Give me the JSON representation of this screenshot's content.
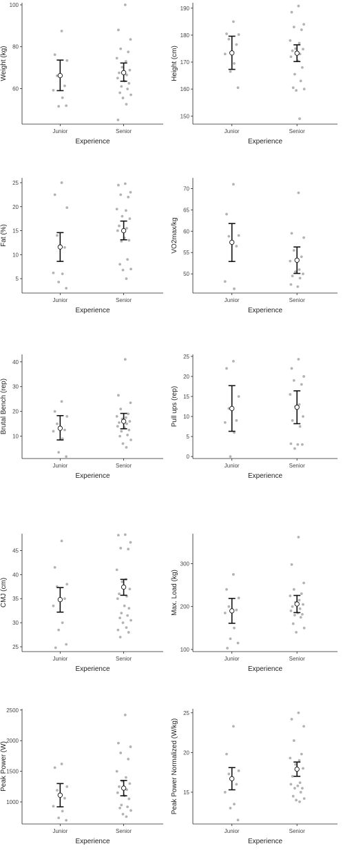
{
  "chart_data": [
    {
      "type": "scatter",
      "xlabel": "Experience",
      "ylabel": "Weight (kg)",
      "categories": [
        "Junior",
        "Senior"
      ],
      "ylim": [
        43,
        101
      ],
      "yticks": [
        60,
        80,
        100
      ],
      "groups": [
        {
          "name": "Junior",
          "mean": 66.2,
          "ci_low": 59.0,
          "ci_high": 73.6,
          "values": [
            87.5,
            76.2,
            73.4,
            66.1,
            61.3,
            59.2,
            55.6,
            51.5,
            51.8
          ]
        },
        {
          "name": "Senior",
          "mean": 67.6,
          "ci_low": 63.5,
          "ci_high": 72.2,
          "values": [
            100.0,
            88.0,
            83.5,
            79.0,
            77.5,
            74.5,
            73.0,
            70.2,
            68.8,
            67.5,
            66.5,
            65.0,
            63.6,
            62.5,
            61.0,
            59.8,
            58.0,
            57.0,
            55.5,
            52.5,
            45.0
          ]
        }
      ]
    },
    {
      "type": "scatter",
      "xlabel": "Experience",
      "ylabel": "Height (cm)",
      "categories": [
        "Junior",
        "Senior"
      ],
      "ylim": [
        147,
        192
      ],
      "yticks": [
        150,
        160,
        170,
        180,
        190
      ],
      "groups": [
        {
          "name": "Junior",
          "mean": 173.4,
          "ci_low": 167.3,
          "ci_high": 179.6,
          "values": [
            185.0,
            180.5,
            180.2,
            178.5,
            176.5,
            173.0,
            169.5,
            166.5,
            160.5
          ]
        },
        {
          "name": "Senior",
          "mean": 173.3,
          "ci_low": 170.2,
          "ci_high": 176.4,
          "values": [
            190.8,
            188.5,
            184.0,
            183.0,
            182.0,
            178.0,
            177.0,
            175.0,
            174.8,
            174.2,
            173.0,
            172.0,
            170.5,
            168.0,
            165.5,
            163.0,
            160.5,
            160.0,
            159.5,
            149.0
          ]
        }
      ]
    },
    {
      "type": "scatter",
      "xlabel": "Experience",
      "ylabel": "Fat (%)",
      "categories": [
        "Junior",
        "Senior"
      ],
      "ylim": [
        2,
        26
      ],
      "yticks": [
        5,
        10,
        15,
        20,
        25
      ],
      "groups": [
        {
          "name": "Junior",
          "mean": 11.6,
          "ci_low": 8.6,
          "ci_high": 14.6,
          "values": [
            25.0,
            22.5,
            19.8,
            14.0,
            11.5,
            6.2,
            6.0,
            4.3,
            3.0
          ]
        },
        {
          "name": "Senior",
          "mean": 15.0,
          "ci_low": 13.1,
          "ci_high": 17.0,
          "values": [
            24.8,
            24.5,
            23.0,
            22.5,
            22.0,
            19.5,
            19.2,
            18.0,
            17.5,
            16.0,
            15.5,
            15.0,
            13.5,
            13.0,
            12.8,
            9.0,
            8.0,
            7.0,
            6.8,
            5.0
          ]
        }
      ]
    },
    {
      "type": "scatter",
      "xlabel": "Experience",
      "ylabel": "VO2max/kg",
      "categories": [
        "Junior",
        "Senior"
      ],
      "ylim": [
        45.5,
        72.5
      ],
      "yticks": [
        50,
        55,
        60,
        65,
        70
      ],
      "groups": [
        {
          "name": "Junior",
          "mean": 57.4,
          "ci_low": 52.9,
          "ci_high": 61.8,
          "values": [
            71.0,
            64.0,
            59.0,
            58.8,
            56.5,
            48.2,
            46.5
          ]
        },
        {
          "name": "Senior",
          "mean": 53.2,
          "ci_low": 50.1,
          "ci_high": 56.3,
          "values": [
            69.0,
            59.5,
            58.5,
            55.5,
            54.0,
            53.0,
            51.0,
            50.5,
            50.0,
            49.5,
            49.0,
            47.5,
            47.0
          ]
        }
      ]
    },
    {
      "type": "scatter",
      "xlabel": "Experience",
      "ylabel": "Brutal Bench (rep)",
      "categories": [
        "Junior",
        "Senior"
      ],
      "ylim": [
        1,
        43
      ],
      "yticks": [
        10,
        20,
        30,
        40
      ],
      "groups": [
        {
          "name": "Junior",
          "mean": 13.2,
          "ci_low": 8.5,
          "ci_high": 18.3,
          "values": [
            24.0,
            20.0,
            18.0,
            15.0,
            12.5,
            12.0,
            9.0,
            3.5,
            1.8
          ]
        },
        {
          "name": "Senior",
          "mean": 16.0,
          "ci_low": 13.0,
          "ci_high": 19.2,
          "values": [
            41.0,
            26.5,
            23.5,
            21.0,
            19.0,
            18.0,
            17.5,
            17.0,
            16.0,
            15.5,
            15.0,
            14.0,
            13.5,
            12.5,
            12.0,
            10.5,
            10.0,
            8.5,
            7.0,
            5.5
          ]
        }
      ]
    },
    {
      "type": "scatter",
      "xlabel": "Experience",
      "ylabel": "Pull ups (rep)",
      "categories": [
        "Junior",
        "Senior"
      ],
      "ylim": [
        -0.5,
        25.5
      ],
      "yticks": [
        0,
        5,
        10,
        15,
        20,
        25
      ],
      "groups": [
        {
          "name": "Junior",
          "mean": 12.0,
          "ci_low": 6.3,
          "ci_high": 17.7,
          "values": [
            23.8,
            22.0,
            15.0,
            12.0,
            9.0,
            8.5,
            6.0,
            0.0
          ]
        },
        {
          "name": "Senior",
          "mean": 12.3,
          "ci_low": 8.2,
          "ci_high": 16.4,
          "values": [
            24.3,
            22.0,
            20.0,
            19.0,
            18.0,
            15.5,
            13.0,
            12.5,
            10.0,
            9.0,
            7.5,
            3.2,
            3.0,
            3.0,
            2.0
          ]
        }
      ]
    },
    {
      "type": "scatter",
      "xlabel": "Experience",
      "ylabel": "CMJ (cm)",
      "categories": [
        "Junior",
        "Senior"
      ],
      "ylim": [
        24,
        48.5
      ],
      "yticks": [
        25,
        30,
        35,
        40,
        45
      ],
      "groups": [
        {
          "name": "Junior",
          "mean": 34.8,
          "ci_low": 32.2,
          "ci_high": 37.3,
          "values": [
            47.0,
            41.5,
            38.0,
            37.5,
            35.0,
            33.5,
            30.0,
            28.5,
            25.5,
            24.8
          ]
        },
        {
          "name": "Senior",
          "mean": 37.4,
          "ci_low": 35.7,
          "ci_high": 39.0,
          "values": [
            48.3,
            48.2,
            46.7,
            45.5,
            45.3,
            41.0,
            39.0,
            38.5,
            37.0,
            36.0,
            35.5,
            35.0,
            33.5,
            33.0,
            32.0,
            31.5,
            31.0,
            30.5,
            30.0,
            29.0,
            28.5,
            28.0,
            27.0
          ]
        }
      ]
    },
    {
      "type": "scatter",
      "xlabel": "Experience",
      "ylabel": "Max. Load (kg)",
      "categories": [
        "Junior",
        "Senior"
      ],
      "ylim": [
        95,
        370
      ],
      "yticks": [
        100,
        200,
        300
      ],
      "groups": [
        {
          "name": "Junior",
          "mean": 190.0,
          "ci_low": 161.0,
          "ci_high": 219.0,
          "values": [
            275.0,
            240.0,
            220.0,
            200.0,
            192.0,
            185.0,
            150.0,
            125.0,
            115.0,
            103.0
          ]
        },
        {
          "name": "Senior",
          "mean": 206.0,
          "ci_low": 186.0,
          "ci_high": 226.0,
          "values": [
            362.0,
            298.0,
            255.0,
            240.0,
            230.0,
            225.0,
            215.0,
            210.0,
            205.0,
            200.0,
            195.0,
            190.0,
            185.0,
            182.0,
            180.0,
            175.0,
            160.0,
            150.0,
            140.0
          ]
        }
      ]
    },
    {
      "type": "scatter",
      "xlabel": "Experience",
      "ylabel": "Peak Power (W)",
      "categories": [
        "Junior",
        "Senior"
      ],
      "ylim": [
        640,
        2520
      ],
      "yticks": [
        1000,
        1500,
        2000,
        2500
      ],
      "groups": [
        {
          "name": "Junior",
          "mean": 1110.0,
          "ci_low": 920.0,
          "ci_high": 1300.0,
          "values": [
            1620.0,
            1560.0,
            1250.0,
            1190.0,
            1060.0,
            930.0,
            850.0,
            740.0,
            700.0
          ]
        },
        {
          "name": "Senior",
          "mean": 1225.0,
          "ci_low": 1100.0,
          "ci_high": 1350.0,
          "values": [
            2420.0,
            1960.0,
            1900.0,
            1800.0,
            1700.0,
            1500.0,
            1400.0,
            1340.0,
            1300.0,
            1250.0,
            1200.0,
            1150.0,
            1100.0,
            1050.0,
            950.0,
            920.0,
            900.0,
            860.0,
            800.0,
            760.0
          ]
        }
      ]
    },
    {
      "type": "scatter",
      "xlabel": "Experience",
      "ylabel": "Peak Power Normalized (W/kg)",
      "categories": [
        "Junior",
        "Senior"
      ],
      "ylim": [
        11,
        25.5
      ],
      "yticks": [
        15,
        20,
        25
      ],
      "groups": [
        {
          "name": "Junior",
          "mean": 16.7,
          "ci_low": 15.3,
          "ci_high": 18.1,
          "values": [
            23.3,
            19.8,
            17.7,
            17.3,
            16.0,
            15.0,
            13.5,
            13.0,
            11.5
          ]
        },
        {
          "name": "Senior",
          "mean": 17.9,
          "ci_low": 17.0,
          "ci_high": 18.8,
          "values": [
            25.0,
            24.2,
            23.3,
            21.5,
            19.8,
            19.3,
            19.0,
            18.5,
            18.0,
            17.0,
            16.2,
            16.0,
            15.8,
            15.5,
            15.5,
            15.0,
            14.5,
            14.2,
            14.0,
            13.8
          ]
        }
      ]
    }
  ]
}
